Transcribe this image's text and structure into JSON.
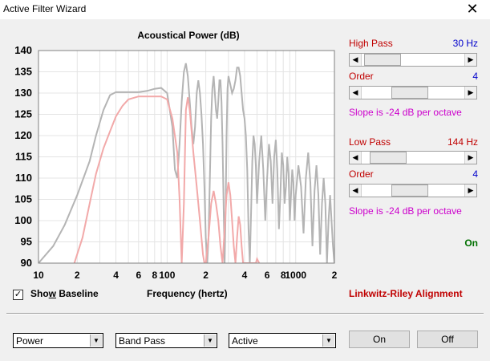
{
  "window": {
    "title": "Active Filter Wizard",
    "close_glyph": "✕"
  },
  "chart": {
    "title": "Acoustical Power (dB)",
    "xlabel": "Frequency (hertz)"
  },
  "chart_data": {
    "type": "line",
    "title": "Acoustical Power (dB)",
    "xlabel": "Frequency (hertz)",
    "ylabel": "",
    "xscale": "log",
    "xlim": [
      10,
      2000
    ],
    "ylim": [
      90,
      140
    ],
    "yticks": [
      140,
      135,
      130,
      125,
      120,
      115,
      110,
      105,
      100,
      95,
      90
    ],
    "xtick_labels": [
      "10",
      "2",
      "4",
      "6",
      "8",
      "100",
      "2",
      "4",
      "6",
      "8",
      "1000",
      "2"
    ],
    "grid": true,
    "series": [
      {
        "color": "#b4b4b4",
        "x": [
          10,
          13,
          16,
          20,
          25,
          28,
          32,
          36,
          40,
          50,
          60,
          70,
          80,
          90,
          100,
          110,
          115,
          120,
          125,
          130,
          135,
          140,
          145,
          150,
          155,
          160,
          165,
          170,
          175,
          180,
          185,
          190,
          195,
          200,
          205,
          210,
          215,
          220,
          225,
          230,
          235,
          240,
          245,
          250,
          255,
          260,
          265,
          270,
          275,
          280,
          285,
          290,
          295,
          300,
          310,
          320,
          330,
          340,
          350,
          360,
          370,
          380,
          390,
          400,
          410,
          420,
          430,
          440,
          450,
          460,
          470,
          480,
          490,
          500,
          520,
          540,
          560,
          580,
          600,
          620,
          640,
          660,
          680,
          700,
          720,
          740,
          760,
          780,
          800,
          820,
          840,
          860,
          880,
          900,
          920,
          940,
          960,
          980,
          1000,
          1050,
          1100,
          1150,
          1200,
          1250,
          1300,
          1350,
          1400,
          1450,
          1500,
          1550,
          1600,
          1650,
          1700,
          1750,
          1800,
          1850,
          1900,
          1950,
          2000
        ],
        "values": [
          90,
          94,
          99,
          106,
          114,
          120,
          126,
          129.5,
          130.2,
          130.2,
          130.2,
          130.5,
          131,
          131.2,
          130,
          122,
          112,
          110,
          118,
          128,
          135,
          137,
          134,
          128,
          122,
          118,
          122,
          130,
          133,
          130,
          125,
          118,
          108,
          96,
          90,
          96,
          110,
          124,
          131,
          134,
          130,
          126,
          124,
          128,
          133,
          133,
          128,
          118,
          104,
          90,
          102,
          120,
          131,
          134,
          132,
          130,
          131,
          133,
          136,
          136,
          134,
          130,
          126,
          124,
          120,
          112,
          98,
          90,
          102,
          114,
          120,
          118,
          113,
          104,
          114,
          120,
          112,
          100,
          110,
          118,
          114,
          104,
          115,
          119,
          112,
          98,
          106,
          116,
          113,
          104,
          108,
          115,
          111,
          100,
          106,
          112,
          109,
          100,
          106,
          113,
          108,
          97,
          110,
          116,
          109,
          94,
          107,
          113,
          106,
          92,
          104,
          110,
          104,
          90,
          100,
          106,
          100,
          94,
          90
        ]
      },
      {
        "color": "#f2a9a9",
        "x": [
          19,
          22,
          25,
          28,
          32,
          36,
          40,
          45,
          50,
          60,
          70,
          80,
          90,
          100,
          110,
          120,
          125,
          130,
          135,
          140,
          145,
          150,
          155,
          160,
          165,
          170,
          175,
          180,
          185,
          190,
          195,
          200,
          210,
          220,
          230,
          240,
          250,
          260,
          270,
          280,
          290,
          300,
          310,
          320,
          330,
          340,
          350,
          360,
          370,
          380,
          390,
          400,
          410,
          420,
          430,
          440,
          450,
          460,
          470,
          480,
          490,
          500,
          520
        ],
        "values": [
          90,
          96,
          104,
          111,
          117,
          121,
          124.5,
          127,
          128.5,
          129.2,
          129.2,
          129.2,
          129.2,
          128.5,
          124,
          116,
          105,
          90,
          104,
          126,
          129,
          126,
          121,
          116,
          112,
          108,
          104,
          100,
          96,
          92,
          90,
          90,
          96,
          104,
          107,
          104,
          100,
          94,
          90,
          98,
          106,
          109,
          106,
          100,
          94,
          90,
          96,
          101,
          99,
          94,
          90,
          90,
          90,
          90,
          90,
          90,
          90,
          90,
          90,
          90,
          90,
          91,
          90
        ]
      }
    ]
  },
  "highpass": {
    "label": "High Pass",
    "value": "30 Hz",
    "order_label": "Order",
    "order_value": "4",
    "slope": "Slope is -24 dB per octave",
    "freq_pos": 0.05,
    "order_pos": 0.45
  },
  "lowpass": {
    "label": "Low Pass",
    "value": "144 Hz",
    "order_label": "Order",
    "order_value": "4",
    "slope": "Slope is -24 dB per octave",
    "freq_pos": 0.13,
    "order_pos": 0.45
  },
  "status": "On",
  "alignment": "Linkwitz-Riley Alignment",
  "show_baseline": {
    "prefix": "Sho",
    "mnemonic": "w",
    "suffix": " Baseline",
    "checked_glyph": "✓"
  },
  "dropdowns": [
    {
      "value": "Power",
      "arrow": "▼"
    },
    {
      "value": "Band Pass",
      "arrow": "▼"
    },
    {
      "value": "Active",
      "arrow": "▼"
    }
  ],
  "buttons": {
    "on": "On",
    "off": "Off"
  },
  "slider_arrows": {
    "left": "◀",
    "right": "▶"
  },
  "colors": {
    "high_pass_label": "#c00000",
    "value_blue": "#0000cc",
    "slope_magenta": "#cc00cc",
    "status_green": "#007000",
    "baseline_gray": "#b4b4b4",
    "filtered_pink": "#f2a9a9"
  }
}
